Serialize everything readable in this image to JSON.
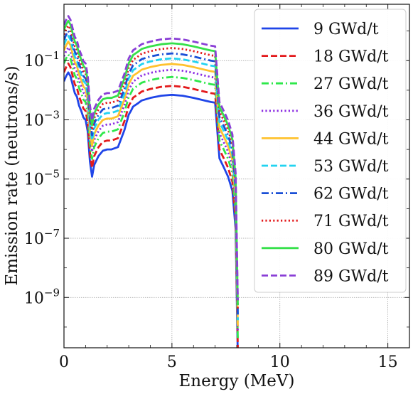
{
  "chart_data": {
    "type": "line",
    "title": "",
    "xlabel": "Energy (MeV)",
    "ylabel": "Emission rate (neutrons/s)",
    "xscale": "linear",
    "yscale": "log",
    "xlim": [
      0,
      16
    ],
    "ylim": [
      2e-11,
      8
    ],
    "xticks": [
      0,
      5,
      10,
      15
    ],
    "xtick_labels": [
      "0",
      "5",
      "10",
      "15"
    ],
    "yticks": [
      1e-09,
      1e-07,
      1e-05,
      0.001,
      0.1
    ],
    "ytick_labels": [
      {
        "base": "10",
        "exp": "−9"
      },
      {
        "base": "10",
        "exp": "−7"
      },
      {
        "base": "10",
        "exp": "−5"
      },
      {
        "base": "10",
        "exp": "−3"
      },
      {
        "base": "10",
        "exp": "−1"
      }
    ],
    "grid": true,
    "legend_position": "top-right",
    "base_profile": {
      "x": [
        0,
        0.1,
        0.2,
        0.3,
        0.5,
        0.6,
        0.7,
        0.8,
        0.9,
        1.0,
        1.1,
        1.2,
        1.3,
        1.4,
        1.6,
        1.8,
        2.0,
        2.2,
        2.5,
        2.8,
        3.0,
        3.1,
        3.2,
        3.4,
        3.6,
        4.0,
        4.5,
        5.0,
        5.5,
        6.0,
        6.5,
        6.8,
        7.0,
        7.2,
        7.4,
        7.6,
        7.8,
        7.95,
        8.05
      ],
      "y": [
        0.02,
        0.03,
        0.04,
        0.03,
        0.008,
        0.006,
        0.003,
        0.002,
        0.0012,
        0.001,
        0.0004,
        4e-05,
        1.2e-05,
        3e-05,
        6e-05,
        9e-05,
        0.0001,
        0.0001,
        0.00012,
        0.00045,
        0.0015,
        0.002,
        0.0028,
        0.0035,
        0.0045,
        0.0055,
        0.0065,
        0.007,
        0.0065,
        0.0055,
        0.0045,
        0.004,
        0.0038,
        5e-05,
        2.5e-05,
        1.2e-05,
        4e-06,
        2e-07,
        1e-11
      ]
    },
    "series": [
      {
        "name": "9 GWd/t",
        "color": "#1f45e8",
        "dash": "solid",
        "scale": 1
      },
      {
        "name": "18 GWd/t",
        "color": "#e31a1c",
        "dash": "dashed",
        "scale": 2
      },
      {
        "name": "27 GWd/t",
        "color": "#2ee84a",
        "dash": "dashdot",
        "scale": 4
      },
      {
        "name": "36 GWd/t",
        "color": "#8a2be2",
        "dash": "dotted",
        "scale": 7
      },
      {
        "name": "44 GWd/t",
        "color": "#ffc22e",
        "dash": "solid",
        "scale": 11
      },
      {
        "name": "53 GWd/t",
        "color": "#22d3f0",
        "dash": "dashed",
        "scale": 17
      },
      {
        "name": "62 GWd/t",
        "color": "#1a4fd6",
        "dash": "dashdot",
        "scale": 25
      },
      {
        "name": "71 GWd/t",
        "color": "#e31a1c",
        "dash": "dotted",
        "scale": 38
      },
      {
        "name": "80 GWd/t",
        "color": "#35e04a",
        "dash": "solid",
        "scale": 55
      },
      {
        "name": "89 GWd/t",
        "color": "#8a3fd6",
        "dash": "dashed",
        "scale": 80
      }
    ]
  }
}
